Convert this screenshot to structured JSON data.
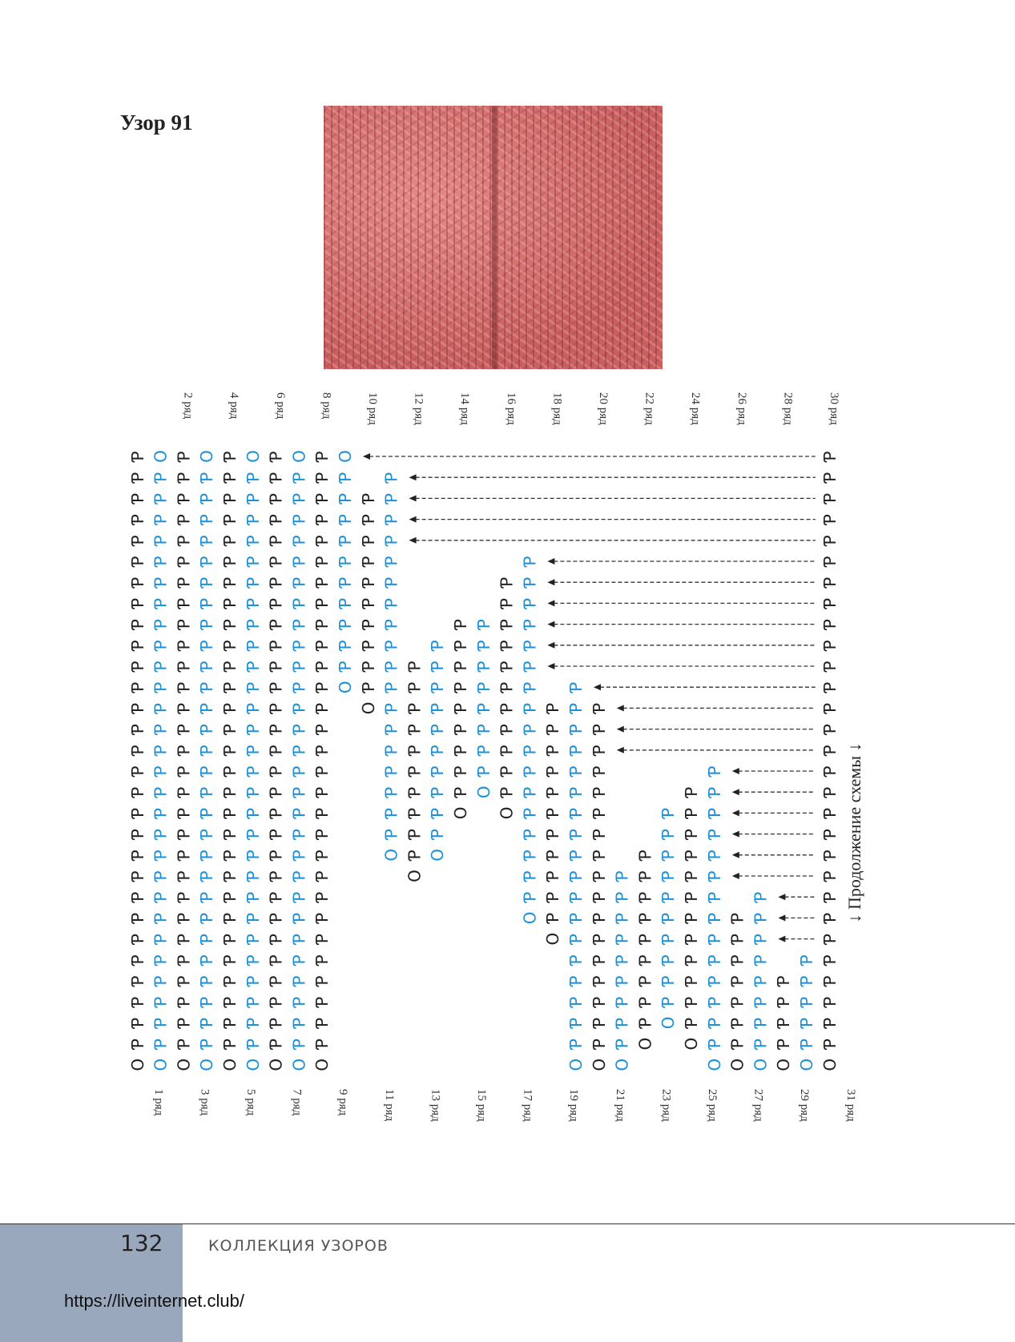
{
  "title": "Узор 91",
  "photo_alt": "",
  "continuation": "↓ Продолжение схемы ↓",
  "row_labels_even": [
    "2 ряд",
    "4 ряд",
    "6 ряд",
    "8 ряд",
    "10 ряд",
    "12 ряд",
    "14 ряд",
    "16 ряд",
    "18 ряд",
    "20 ряд",
    "22 ряд",
    "24 ряд",
    "26 ряд",
    "28 ряд",
    "30 ряд"
  ],
  "row_labels_odd": [
    "1 ряд",
    "3 ряд",
    "5 ряд",
    "7 ряд",
    "9 ряд",
    "11 ряд",
    "13 ряд",
    "15 ряд",
    "17 ряд",
    "19 ряд",
    "21 ряд",
    "23 ряд",
    "25 ряд",
    "27 ряд",
    "29 ряд",
    "31 ряд"
  ],
  "colors": {
    "odd_rows": "#222222",
    "even_rows": "#1e90d6"
  },
  "footer": {
    "page_number": "132",
    "section": "КОЛЛЕКЦИЯ УЗОРОВ",
    "url": "https://liveinternet.club/"
  }
}
